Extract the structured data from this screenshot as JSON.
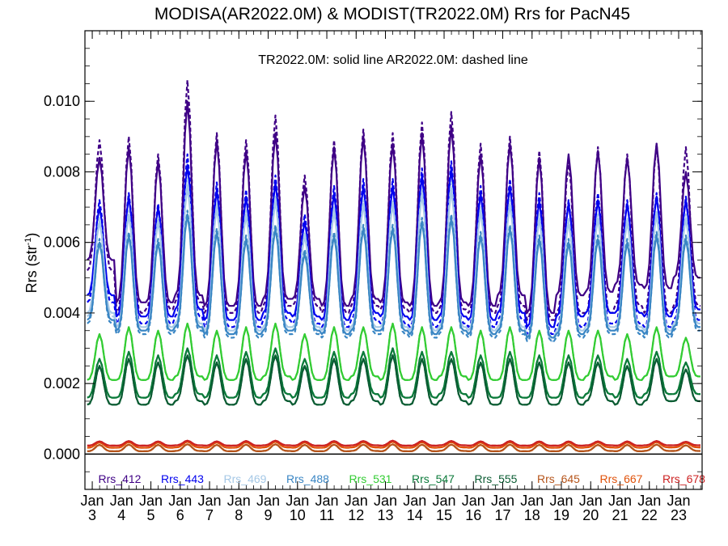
{
  "chart_data": {
    "type": "line",
    "title": "MODISA(AR2022.0M) & MODIST(TR2022.0M)  Rrs for PacN45",
    "subtitle": "TR2022.0M: solid line   AR2022.0M: dashed line",
    "ylabel_main": "Rrs (str",
    "ylabel_sup": "-1",
    "ylabel_close": ")",
    "ylim": [
      -0.001,
      0.012
    ],
    "xlim": [
      2002.75,
      2023.8
    ],
    "yticks": [
      {
        "value": 0.0,
        "label": "0.000"
      },
      {
        "value": 0.002,
        "label": "0.002"
      },
      {
        "value": 0.004,
        "label": "0.004"
      },
      {
        "value": 0.006,
        "label": "0.006"
      },
      {
        "value": 0.008,
        "label": "0.008"
      },
      {
        "value": 0.01,
        "label": "0.010"
      }
    ],
    "xticks": [
      {
        "value": 2003,
        "month": "Jan",
        "year": "3"
      },
      {
        "value": 2004,
        "month": "Jan",
        "year": "4"
      },
      {
        "value": 2005,
        "month": "Jan",
        "year": "5"
      },
      {
        "value": 2006,
        "month": "Jan",
        "year": "6"
      },
      {
        "value": 2007,
        "month": "Jan",
        "year": "7"
      },
      {
        "value": 2008,
        "month": "Jan",
        "year": "8"
      },
      {
        "value": 2009,
        "month": "Jan",
        "year": "9"
      },
      {
        "value": 2010,
        "month": "Jan",
        "year": "10"
      },
      {
        "value": 2011,
        "month": "Jan",
        "year": "11"
      },
      {
        "value": 2012,
        "month": "Jan",
        "year": "12"
      },
      {
        "value": 2013,
        "month": "Jan",
        "year": "13"
      },
      {
        "value": 2014,
        "month": "Jan",
        "year": "14"
      },
      {
        "value": 2015,
        "month": "Jan",
        "year": "15"
      },
      {
        "value": 2016,
        "month": "Jan",
        "year": "16"
      },
      {
        "value": 2017,
        "month": "Jan",
        "year": "17"
      },
      {
        "value": 2018,
        "month": "Jan",
        "year": "18"
      },
      {
        "value": 2019,
        "month": "Jan",
        "year": "19"
      },
      {
        "value": 2020,
        "month": "Jan",
        "year": "20"
      },
      {
        "value": 2021,
        "month": "Jan",
        "year": "21"
      },
      {
        "value": 2022,
        "month": "Jan",
        "year": "22"
      },
      {
        "value": 2023,
        "month": "Jan",
        "year": "23"
      }
    ],
    "zero_line": true,
    "grid": false,
    "legend_placement": "bottom-inside",
    "x_start": 2002.83,
    "x_step": 0.08333,
    "series": [
      {
        "name": "Rrs_412",
        "color": "#3f0085",
        "tr_max": [
          0.0084,
          0.0087,
          0.0083,
          0.01,
          0.0089,
          0.0086,
          0.0091,
          0.0076,
          0.0087,
          0.009,
          0.0088,
          0.0091,
          0.0093,
          0.0085,
          0.0088,
          0.0084,
          0.0085,
          0.0086,
          0.0084,
          0.0088,
          0.008
        ],
        "tr_min": [
          0.0055,
          0.0043,
          0.0043,
          0.0045,
          0.0042,
          0.0042,
          0.0044,
          0.0044,
          0.0042,
          0.0044,
          0.0043,
          0.0042,
          0.0043,
          0.0042,
          0.0045,
          0.004,
          0.0045,
          0.0046,
          0.0048,
          0.0047,
          0.005
        ],
        "ar_max": [
          0.0089,
          0.009,
          0.0085,
          0.0106,
          0.0091,
          0.0089,
          0.0096,
          0.0079,
          0.0089,
          0.0092,
          0.0091,
          0.0094,
          0.0097,
          0.0088,
          0.009,
          0.0086,
          0.0083,
          0.0087,
          0.0085,
          0.0088,
          0.0087
        ],
        "ar_min": [
          0.0052,
          0.004,
          0.0041,
          0.0043,
          0.004,
          0.004,
          0.0042,
          0.0042,
          0.004,
          0.0042,
          0.0041,
          0.004,
          0.0041,
          0.004,
          0.0042,
          0.0038,
          0.004,
          0.004,
          0.0042,
          0.004,
          0.0042
        ]
      },
      {
        "name": "Rrs_443",
        "color": "#0000ee",
        "tr_max": [
          0.007,
          0.0073,
          0.007,
          0.0082,
          0.0075,
          0.0073,
          0.0077,
          0.0066,
          0.0074,
          0.0076,
          0.0076,
          0.0079,
          0.0081,
          0.0074,
          0.0076,
          0.0072,
          0.0071,
          0.0072,
          0.0071,
          0.0073,
          0.0072
        ],
        "tr_min": [
          0.0045,
          0.0039,
          0.0039,
          0.0041,
          0.0038,
          0.0038,
          0.004,
          0.0039,
          0.0038,
          0.004,
          0.0039,
          0.0038,
          0.0039,
          0.0038,
          0.004,
          0.0036,
          0.0039,
          0.004,
          0.004,
          0.0039,
          0.0041
        ],
        "ar_max": [
          0.0072,
          0.0074,
          0.0071,
          0.0085,
          0.0077,
          0.0075,
          0.0079,
          0.0068,
          0.0076,
          0.0078,
          0.0078,
          0.0081,
          0.0083,
          0.0076,
          0.0078,
          0.0074,
          0.0072,
          0.0074,
          0.0072,
          0.0074,
          0.0073
        ],
        "ar_min": [
          0.0043,
          0.0037,
          0.0037,
          0.0039,
          0.0036,
          0.0036,
          0.0038,
          0.0037,
          0.0036,
          0.0038,
          0.0037,
          0.0036,
          0.0037,
          0.0036,
          0.0038,
          0.0034,
          0.0036,
          0.0037,
          0.0037,
          0.0036,
          0.0038
        ]
      },
      {
        "name": "Rrs_469",
        "color": "#a5c8e6",
        "tr_max": [
          0.0066,
          0.0068,
          0.0066,
          0.0076,
          0.007,
          0.0068,
          0.0072,
          0.0062,
          0.0069,
          0.0071,
          0.0071,
          0.0074,
          0.0075,
          0.0069,
          0.0071,
          0.0067,
          0.0066,
          0.0067,
          0.0066,
          0.0068,
          0.0067
        ],
        "tr_min": [
          0.004,
          0.0036,
          0.0036,
          0.0037,
          0.0035,
          0.0035,
          0.0036,
          0.0036,
          0.0035,
          0.0036,
          0.0036,
          0.0035,
          0.0036,
          0.0035,
          0.0036,
          0.0033,
          0.0035,
          0.0036,
          0.0036,
          0.0035,
          0.0037
        ],
        "ar_max": [
          0.0067,
          0.0069,
          0.0067,
          0.0078,
          0.0071,
          0.0069,
          0.0073,
          0.0063,
          0.007,
          0.0072,
          0.0072,
          0.0075,
          0.0077,
          0.007,
          0.0072,
          0.0068,
          0.0067,
          0.0068,
          0.0067,
          0.0069,
          0.0068
        ],
        "ar_min": [
          0.0039,
          0.0035,
          0.0035,
          0.0036,
          0.0034,
          0.0034,
          0.0035,
          0.0035,
          0.0034,
          0.0035,
          0.0035,
          0.0034,
          0.0035,
          0.0034,
          0.0035,
          0.0032,
          0.0034,
          0.0035,
          0.0035,
          0.0034,
          0.0036
        ]
      },
      {
        "name": "Rrs_488",
        "color": "#3a86c4",
        "tr_max": [
          0.006,
          0.0062,
          0.006,
          0.0068,
          0.0063,
          0.0061,
          0.0064,
          0.0057,
          0.0062,
          0.0064,
          0.0064,
          0.0066,
          0.0067,
          0.0062,
          0.0064,
          0.0061,
          0.006,
          0.0061,
          0.006,
          0.0062,
          0.0061
        ],
        "tr_min": [
          0.0038,
          0.0035,
          0.0035,
          0.0036,
          0.0034,
          0.0034,
          0.0035,
          0.0035,
          0.0034,
          0.0035,
          0.0035,
          0.0034,
          0.0035,
          0.0034,
          0.0035,
          0.0033,
          0.0034,
          0.0035,
          0.0035,
          0.0034,
          0.0036
        ],
        "ar_max": [
          0.0061,
          0.0063,
          0.0061,
          0.0069,
          0.0064,
          0.0062,
          0.0065,
          0.0058,
          0.0063,
          0.0065,
          0.0065,
          0.0067,
          0.0068,
          0.0063,
          0.0065,
          0.0062,
          0.0061,
          0.0062,
          0.0061,
          0.0063,
          0.0062
        ],
        "ar_min": [
          0.0037,
          0.0034,
          0.0034,
          0.0035,
          0.0033,
          0.0033,
          0.0034,
          0.0034,
          0.0033,
          0.0034,
          0.0034,
          0.0033,
          0.0034,
          0.0033,
          0.0034,
          0.0032,
          0.0033,
          0.0034,
          0.0034,
          0.0033,
          0.0035
        ]
      },
      {
        "name": "Rrs_531",
        "color": "#33cc33",
        "tr_max": [
          0.0034,
          0.0036,
          0.0035,
          0.0037,
          0.0035,
          0.0036,
          0.0037,
          0.0034,
          0.0036,
          0.0036,
          0.0037,
          0.0036,
          0.0036,
          0.0035,
          0.0036,
          0.0035,
          0.0035,
          0.0035,
          0.0034,
          0.0036,
          0.0033
        ],
        "tr_min": [
          0.0021,
          0.0021,
          0.0021,
          0.0022,
          0.0021,
          0.0021,
          0.0022,
          0.0021,
          0.0021,
          0.0022,
          0.0021,
          0.0021,
          0.0022,
          0.0021,
          0.0021,
          0.0021,
          0.0021,
          0.0022,
          0.0021,
          0.0022,
          0.0022
        ],
        "ar_max": [
          0.0034,
          0.0036,
          0.0035,
          0.0037,
          0.0035,
          0.0036,
          0.0037,
          0.0034,
          0.0036,
          0.0036,
          0.0037,
          0.0036,
          0.0036,
          0.0035,
          0.0036,
          0.0035,
          0.0035,
          0.0035,
          0.0034,
          0.0036,
          0.0033
        ],
        "ar_min": [
          0.0021,
          0.0021,
          0.0021,
          0.0022,
          0.0021,
          0.0021,
          0.0022,
          0.0021,
          0.0021,
          0.0022,
          0.0021,
          0.0021,
          0.0022,
          0.0021,
          0.0021,
          0.0021,
          0.0021,
          0.0022,
          0.0021,
          0.0022,
          0.0022
        ]
      },
      {
        "name": "Rrs_547",
        "color": "#0b7a3a",
        "tr_max": [
          0.0027,
          0.0029,
          0.0028,
          0.003,
          0.0028,
          0.0029,
          0.003,
          0.0027,
          0.0029,
          0.0029,
          0.003,
          0.0029,
          0.0029,
          0.0028,
          0.0029,
          0.0028,
          0.0028,
          0.0028,
          0.0027,
          0.0029,
          0.0026
        ],
        "tr_min": [
          0.0016,
          0.0016,
          0.0016,
          0.0017,
          0.0016,
          0.0016,
          0.0017,
          0.0016,
          0.0016,
          0.0017,
          0.0016,
          0.0016,
          0.0017,
          0.0016,
          0.0016,
          0.0016,
          0.0016,
          0.0017,
          0.0016,
          0.0017,
          0.0017
        ],
        "ar_max": [
          0.0027,
          0.0029,
          0.0028,
          0.003,
          0.0028,
          0.0029,
          0.003,
          0.0027,
          0.0029,
          0.0029,
          0.003,
          0.0029,
          0.0029,
          0.0028,
          0.0029,
          0.0028,
          0.0028,
          0.0028,
          0.0027,
          0.0029,
          0.0026
        ],
        "ar_min": [
          0.0016,
          0.0016,
          0.0016,
          0.0017,
          0.0016,
          0.0016,
          0.0017,
          0.0016,
          0.0016,
          0.0017,
          0.0016,
          0.0016,
          0.0017,
          0.0016,
          0.0016,
          0.0016,
          0.0016,
          0.0017,
          0.0016,
          0.0017,
          0.0017
        ]
      },
      {
        "name": "Rrs_555",
        "color": "#0b5c33",
        "tr_max": [
          0.0025,
          0.0027,
          0.0026,
          0.0028,
          0.0026,
          0.0027,
          0.0028,
          0.0025,
          0.0027,
          0.0027,
          0.0028,
          0.0027,
          0.0027,
          0.0026,
          0.0027,
          0.0026,
          0.0026,
          0.0026,
          0.0025,
          0.0027,
          0.0024
        ],
        "tr_min": [
          0.0014,
          0.0014,
          0.0014,
          0.0015,
          0.0014,
          0.0014,
          0.0015,
          0.0014,
          0.0014,
          0.0015,
          0.0014,
          0.0014,
          0.0015,
          0.0014,
          0.0014,
          0.0014,
          0.0014,
          0.0015,
          0.0014,
          0.0015,
          0.0015
        ],
        "ar_max": [
          0.0025,
          0.0027,
          0.0026,
          0.0028,
          0.0026,
          0.0027,
          0.0028,
          0.0025,
          0.0027,
          0.0027,
          0.0028,
          0.0027,
          0.0027,
          0.0026,
          0.0027,
          0.0026,
          0.0026,
          0.0026,
          0.0025,
          0.0027,
          0.0024
        ],
        "ar_min": [
          0.0014,
          0.0014,
          0.0014,
          0.0015,
          0.0014,
          0.0014,
          0.0015,
          0.0014,
          0.0014,
          0.0015,
          0.0014,
          0.0014,
          0.0015,
          0.0014,
          0.0014,
          0.0014,
          0.0014,
          0.0015,
          0.0014,
          0.0015,
          0.0015
        ]
      },
      {
        "name": "Rrs_645",
        "color": "#b5541a",
        "tr_max": [
          0.00026,
          0.00027,
          0.00026,
          0.00028,
          0.00026,
          0.00027,
          0.00028,
          0.00026,
          0.00027,
          0.00027,
          0.00028,
          0.00027,
          0.00027,
          0.00026,
          0.00027,
          0.00026,
          0.00026,
          0.00026,
          0.00026,
          0.00027,
          0.00025
        ],
        "tr_min": [
          8e-05,
          8e-05,
          8e-05,
          9e-05,
          8e-05,
          8e-05,
          9e-05,
          8e-05,
          8e-05,
          9e-05,
          8e-05,
          8e-05,
          9e-05,
          8e-05,
          8e-05,
          8e-05,
          8e-05,
          9e-05,
          8e-05,
          9e-05,
          9e-05
        ],
        "ar_max": [
          0.00026,
          0.00027,
          0.00026,
          0.00028,
          0.00026,
          0.00027,
          0.00028,
          0.00026,
          0.00027,
          0.00027,
          0.00028,
          0.00027,
          0.00027,
          0.00026,
          0.00027,
          0.00026,
          0.00026,
          0.00026,
          0.00026,
          0.00027,
          0.00025
        ],
        "ar_min": [
          8e-05,
          8e-05,
          8e-05,
          9e-05,
          8e-05,
          8e-05,
          9e-05,
          8e-05,
          8e-05,
          9e-05,
          8e-05,
          8e-05,
          9e-05,
          8e-05,
          8e-05,
          8e-05,
          8e-05,
          9e-05,
          8e-05,
          9e-05,
          9e-05
        ]
      },
      {
        "name": "Rrs_667",
        "color": "#e0520a",
        "tr_max": [
          0.00033,
          0.00034,
          0.00033,
          0.00035,
          0.00033,
          0.00034,
          0.00035,
          0.00033,
          0.00034,
          0.00034,
          0.00035,
          0.00034,
          0.00034,
          0.00033,
          0.00034,
          0.00033,
          0.00033,
          0.00033,
          0.00033,
          0.00034,
          0.00032
        ],
        "tr_min": [
          0.00018,
          0.00018,
          0.00018,
          0.00019,
          0.00018,
          0.00018,
          0.00019,
          0.00018,
          0.00018,
          0.00019,
          0.00018,
          0.00018,
          0.00019,
          0.00018,
          0.00018,
          0.00018,
          0.00018,
          0.00019,
          0.00018,
          0.00019,
          0.00019
        ],
        "ar_max": [
          0.00033,
          0.00034,
          0.00033,
          0.00035,
          0.00033,
          0.00034,
          0.00035,
          0.00033,
          0.00034,
          0.00034,
          0.00035,
          0.00034,
          0.00034,
          0.00033,
          0.00034,
          0.00033,
          0.00033,
          0.00033,
          0.00033,
          0.00034,
          0.00032
        ],
        "ar_min": [
          0.00018,
          0.00018,
          0.00018,
          0.00019,
          0.00018,
          0.00018,
          0.00019,
          0.00018,
          0.00018,
          0.00019,
          0.00018,
          0.00018,
          0.00019,
          0.00018,
          0.00018,
          0.00018,
          0.00018,
          0.00019,
          0.00018,
          0.00019,
          0.00019
        ]
      },
      {
        "name": "Rrs_678",
        "color": "#cc2222",
        "tr_max": [
          0.00036,
          0.00037,
          0.00036,
          0.00038,
          0.00036,
          0.00037,
          0.00038,
          0.00036,
          0.00037,
          0.00037,
          0.00038,
          0.00037,
          0.00037,
          0.00036,
          0.00037,
          0.00036,
          0.00036,
          0.00036,
          0.00036,
          0.00037,
          0.00035
        ],
        "tr_min": [
          0.00024,
          0.00024,
          0.00024,
          0.00025,
          0.00024,
          0.00024,
          0.00025,
          0.00024,
          0.00024,
          0.00025,
          0.00024,
          0.00024,
          0.00025,
          0.00024,
          0.00024,
          0.00024,
          0.00024,
          0.00025,
          0.00024,
          0.00025,
          0.00025
        ],
        "ar_max": [
          0.00036,
          0.00037,
          0.00036,
          0.00038,
          0.00036,
          0.00037,
          0.00038,
          0.00036,
          0.00037,
          0.00037,
          0.00038,
          0.00037,
          0.00037,
          0.00036,
          0.00037,
          0.00036,
          0.00036,
          0.00036,
          0.00036,
          0.00037,
          0.00035
        ],
        "ar_min": [
          0.00024,
          0.00024,
          0.00024,
          0.00025,
          0.00024,
          0.00024,
          0.00025,
          0.00024,
          0.00024,
          0.00025,
          0.00024,
          0.00024,
          0.00025,
          0.00024,
          0.00024,
          0.00024,
          0.00024,
          0.00025,
          0.00024,
          0.00025,
          0.00025
        ]
      }
    ]
  }
}
